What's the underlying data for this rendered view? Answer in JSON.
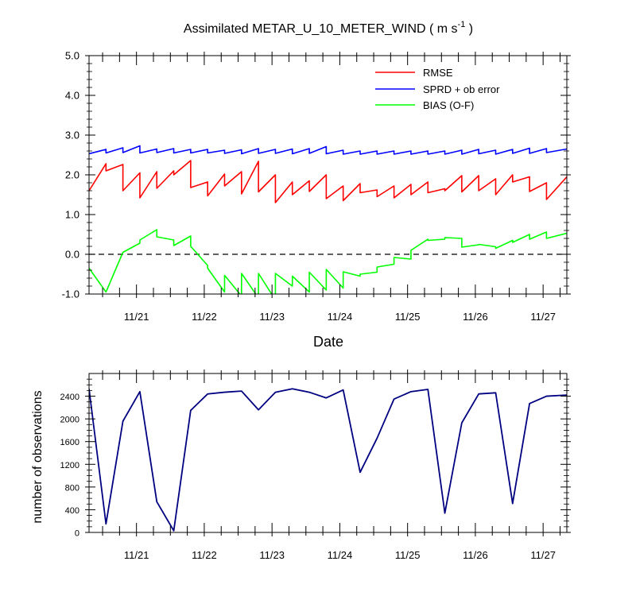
{
  "chart_data": [
    {
      "type": "line",
      "title": "Assimilated METAR_U_10_METER_WIND ( m s",
      "title_superscript": "-1",
      "title_suffix": " )",
      "xlabel": "Date",
      "ylabel": "",
      "xlim": [
        20.3,
        27.35
      ],
      "ylim": [
        -1.0,
        5.0
      ],
      "yticks": [
        {
          "v": -1.0,
          "label": "-1.0"
        },
        {
          "v": 0.0,
          "label": "0.0"
        },
        {
          "v": 1.0,
          "label": "1.0"
        },
        {
          "v": 2.0,
          "label": "2.0"
        },
        {
          "v": 3.0,
          "label": "3.0"
        },
        {
          "v": 4.0,
          "label": "4.0"
        },
        {
          "v": 5.0,
          "label": "5.0"
        }
      ],
      "xticks": [
        {
          "v": 21,
          "label": "11/21"
        },
        {
          "v": 22,
          "label": "11/22"
        },
        {
          "v": 23,
          "label": "11/23"
        },
        {
          "v": 24,
          "label": "11/24"
        },
        {
          "v": 25,
          "label": "11/25"
        },
        {
          "v": 26,
          "label": "11/26"
        },
        {
          "v": 27,
          "label": "11/27"
        }
      ],
      "zero_line": 0.0,
      "legend_position": "top-right",
      "series": [
        {
          "name": "RMSE",
          "color": "#ff0000",
          "x": [
            20.3,
            20.55,
            20.55,
            20.8,
            20.8,
            21.05,
            21.05,
            21.3,
            21.3,
            21.55,
            21.55,
            21.8,
            21.8,
            22.05,
            22.05,
            22.3,
            22.3,
            22.55,
            22.55,
            22.8,
            22.8,
            23.05,
            23.05,
            23.3,
            23.3,
            23.55,
            23.55,
            23.8,
            23.8,
            24.05,
            24.05,
            24.3,
            24.3,
            24.55,
            24.55,
            24.8,
            24.8,
            25.05,
            25.05,
            25.3,
            25.3,
            25.55,
            25.55,
            25.8,
            25.8,
            26.05,
            26.05,
            26.3,
            26.3,
            26.55,
            26.55,
            26.8,
            26.8,
            27.05,
            27.05,
            27.35
          ],
          "values": [
            1.6,
            2.28,
            2.1,
            2.26,
            1.6,
            2.05,
            1.42,
            2.08,
            1.66,
            2.1,
            2.0,
            2.36,
            1.68,
            1.82,
            1.47,
            2.02,
            1.72,
            2.08,
            1.52,
            2.34,
            1.57,
            2.0,
            1.3,
            1.82,
            1.5,
            1.85,
            1.58,
            2.0,
            1.4,
            1.72,
            1.35,
            1.78,
            1.55,
            1.62,
            1.45,
            1.72,
            1.42,
            1.76,
            1.5,
            1.82,
            1.55,
            1.65,
            1.6,
            1.98,
            1.57,
            1.98,
            1.6,
            1.9,
            1.5,
            2.0,
            1.82,
            1.95,
            1.58,
            1.8,
            1.38,
            1.95
          ]
        },
        {
          "name": "SPRD + ob error",
          "color": "#0000ff",
          "x": [
            20.3,
            20.55,
            20.55,
            20.8,
            20.8,
            21.05,
            21.05,
            21.3,
            21.3,
            21.55,
            21.55,
            21.8,
            21.8,
            22.05,
            22.05,
            22.3,
            22.3,
            22.55,
            22.55,
            22.8,
            22.8,
            23.05,
            23.05,
            23.3,
            23.3,
            23.55,
            23.55,
            23.8,
            23.8,
            24.05,
            24.05,
            24.3,
            24.3,
            24.55,
            24.55,
            24.8,
            24.8,
            25.05,
            25.05,
            25.3,
            25.3,
            25.55,
            25.55,
            25.8,
            25.8,
            26.05,
            26.05,
            26.3,
            26.3,
            26.55,
            26.55,
            26.8,
            26.8,
            27.05,
            27.05,
            27.35
          ],
          "values": [
            2.53,
            2.64,
            2.55,
            2.68,
            2.56,
            2.73,
            2.55,
            2.65,
            2.56,
            2.66,
            2.55,
            2.64,
            2.55,
            2.64,
            2.55,
            2.62,
            2.54,
            2.63,
            2.53,
            2.66,
            2.54,
            2.64,
            2.54,
            2.65,
            2.53,
            2.66,
            2.54,
            2.71,
            2.53,
            2.62,
            2.52,
            2.6,
            2.52,
            2.6,
            2.52,
            2.6,
            2.52,
            2.6,
            2.52,
            2.6,
            2.52,
            2.6,
            2.52,
            2.62,
            2.52,
            2.64,
            2.53,
            2.62,
            2.52,
            2.64,
            2.54,
            2.67,
            2.54,
            2.66,
            2.56,
            2.65
          ]
        },
        {
          "name": "BIAS (O-F)",
          "color": "#00ff00",
          "x": [
            20.3,
            20.55,
            20.8,
            21.05,
            21.05,
            21.3,
            21.3,
            21.55,
            21.55,
            21.8,
            21.8,
            22.05,
            22.05,
            22.3,
            22.3,
            22.55,
            22.55,
            22.8,
            22.8,
            23.05,
            23.05,
            23.3,
            23.3,
            23.55,
            23.55,
            23.8,
            23.8,
            24.05,
            24.05,
            24.3,
            24.3,
            24.55,
            24.55,
            24.8,
            24.8,
            25.05,
            25.05,
            25.3,
            25.3,
            25.55,
            25.55,
            25.8,
            25.8,
            26.05,
            26.05,
            26.3,
            26.3,
            26.55,
            26.55,
            26.8,
            26.8,
            27.05,
            27.05,
            27.35
          ],
          "values": [
            -0.35,
            -0.95,
            0.05,
            0.28,
            0.36,
            0.62,
            0.44,
            0.36,
            0.22,
            0.46,
            0.2,
            -0.28,
            -0.35,
            -0.95,
            -0.53,
            -1.05,
            -0.48,
            -1.1,
            -0.48,
            -1.15,
            -0.48,
            -0.8,
            -0.55,
            -0.95,
            -0.45,
            -0.9,
            -0.38,
            -0.85,
            -0.44,
            -0.55,
            -0.5,
            -0.45,
            -0.32,
            -0.25,
            -0.08,
            -0.12,
            0.1,
            0.38,
            0.35,
            0.38,
            0.42,
            0.4,
            0.18,
            0.24,
            0.25,
            0.19,
            0.15,
            0.35,
            0.3,
            0.5,
            0.38,
            0.56,
            0.4,
            0.53
          ]
        }
      ]
    },
    {
      "type": "line",
      "title": "",
      "xlabel": "",
      "ylabel": "number of observations",
      "xlim": [
        20.3,
        27.35
      ],
      "ylim": [
        0,
        2800
      ],
      "yticks": [
        {
          "v": 0,
          "label": "0"
        },
        {
          "v": 400,
          "label": "400"
        },
        {
          "v": 800,
          "label": "800"
        },
        {
          "v": 1200,
          "label": "1200"
        },
        {
          "v": 1600,
          "label": "1600"
        },
        {
          "v": 2000,
          "label": "2000"
        },
        {
          "v": 2400,
          "label": "2400"
        }
      ],
      "xticks": [
        {
          "v": 21,
          "label": "11/21"
        },
        {
          "v": 22,
          "label": "11/22"
        },
        {
          "v": 23,
          "label": "11/23"
        },
        {
          "v": 24,
          "label": "11/24"
        },
        {
          "v": 25,
          "label": "11/25"
        },
        {
          "v": 26,
          "label": "11/26"
        },
        {
          "v": 27,
          "label": "11/27"
        }
      ],
      "series": [
        {
          "name": "observations",
          "color": "#000080",
          "x": [
            20.3,
            20.55,
            20.8,
            21.05,
            21.3,
            21.55,
            21.8,
            22.05,
            22.3,
            22.55,
            22.8,
            23.05,
            23.3,
            23.55,
            23.8,
            24.05,
            24.3,
            24.55,
            24.8,
            25.05,
            25.3,
            25.55,
            25.8,
            26.05,
            26.3,
            26.55,
            26.8,
            27.05,
            27.35
          ],
          "values": [
            2530,
            150,
            1960,
            2480,
            540,
            30,
            2150,
            2440,
            2470,
            2490,
            2160,
            2470,
            2530,
            2470,
            2370,
            2510,
            1060,
            1660,
            2350,
            2480,
            2520,
            340,
            1930,
            2440,
            2460,
            510,
            2270,
            2400,
            2420
          ]
        }
      ]
    }
  ]
}
